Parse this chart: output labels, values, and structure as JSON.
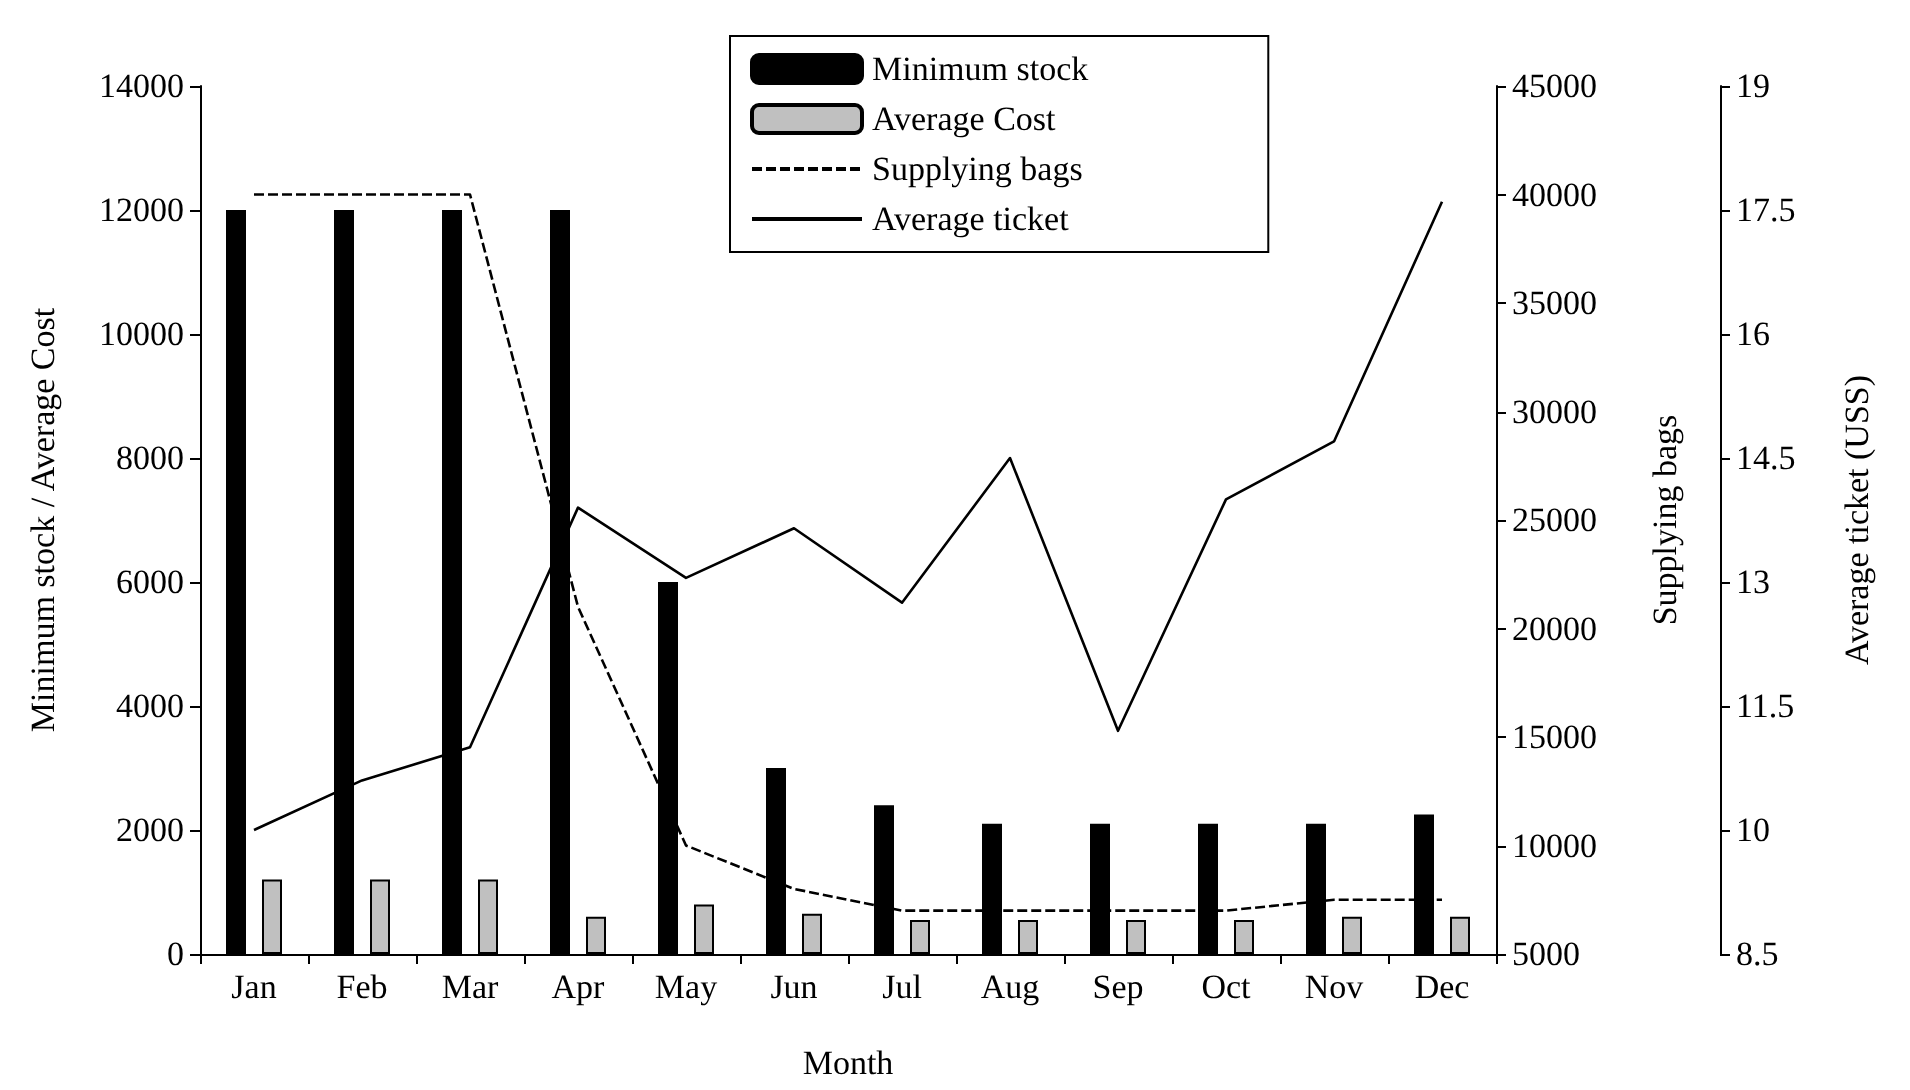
{
  "chart_data": {
    "type": "bar",
    "xlabel": "Month",
    "ylabel": "Minimum stock / Average Cost",
    "y2label": "Supplying bags",
    "y3label": "Average ticket (USS)",
    "categories": [
      "Jan",
      "Feb",
      "Mar",
      "Apr",
      "May",
      "Jun",
      "Jul",
      "Aug",
      "Sep",
      "Oct",
      "Nov",
      "Dec"
    ],
    "series": [
      {
        "name": "Minimum stock",
        "color": "#000000",
        "values": [
          12000,
          12000,
          12000,
          12000,
          6000,
          3000,
          2400,
          2100,
          2100,
          2100,
          2100,
          2250
        ]
      },
      {
        "name": "Average Cost",
        "color": "#c0c0c0",
        "values": [
          1200,
          1200,
          1200,
          600,
          800,
          650,
          550,
          550,
          550,
          550,
          600,
          600
        ]
      },
      {
        "name": "Supplying bags",
        "type": "line",
        "axis": "y2",
        "line_style": "dashed",
        "color": "#000000",
        "values": [
          40000,
          40000,
          40000,
          21000,
          10000,
          8000,
          7000,
          7000,
          7000,
          7000,
          7500,
          7500
        ]
      },
      {
        "name": "Average ticket",
        "type": "line",
        "axis": "y3",
        "line_style": "solid",
        "color": "#000000",
        "values": [
          10,
          10.6,
          11,
          13.9,
          13.05,
          13.65,
          12.75,
          14.5,
          11.2,
          14,
          14.7,
          17.6
        ]
      }
    ],
    "ylim": [
      0,
      14000
    ],
    "yticks": [
      0,
      2000,
      4000,
      6000,
      8000,
      10000,
      12000,
      14000
    ],
    "y2lim": [
      5000,
      45000
    ],
    "y2ticks": [
      5000,
      10000,
      15000,
      20000,
      25000,
      30000,
      35000,
      40000,
      45000
    ],
    "y3lim": [
      8.5,
      19
    ],
    "y3ticks": [
      8.5,
      10,
      11.5,
      13,
      14.5,
      16,
      17.5,
      19
    ],
    "legend": "top",
    "marker": "none"
  }
}
